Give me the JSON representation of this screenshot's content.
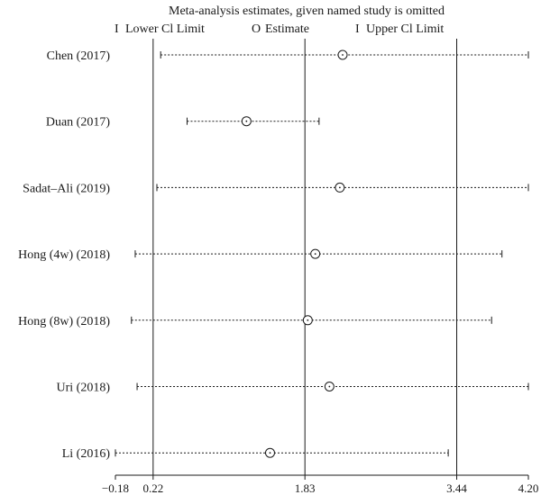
{
  "chart_data": {
    "type": "scatter",
    "title": "Meta-analysis estimates, given named study is omitted",
    "legend": {
      "placement": "top",
      "items": [
        {
          "symbol": "I",
          "label": "Lower Cl Limit"
        },
        {
          "symbol": "O",
          "label": "Estimate"
        },
        {
          "symbol": "I",
          "label": "Upper Cl Limit"
        }
      ]
    },
    "xlim": [
      -0.18,
      4.2
    ],
    "ticks": [
      {
        "value": -0.18,
        "label": "−0.18"
      },
      {
        "value": 0.22,
        "label": "0.22"
      },
      {
        "value": 1.83,
        "label": "1.83"
      },
      {
        "value": 3.44,
        "label": "3.44"
      },
      {
        "value": 4.2,
        "label": "4.20"
      }
    ],
    "reference_lines": [
      0.22,
      1.83,
      3.44
    ],
    "studies": [
      {
        "name": "Chen (2017)",
        "lower": 0.3,
        "estimate": 2.23,
        "upper": 4.2
      },
      {
        "name": "Duan (2017)",
        "lower": 0.58,
        "estimate": 1.21,
        "upper": 1.98
      },
      {
        "name": "Sadat–Ali (2019)",
        "lower": 0.26,
        "estimate": 2.2,
        "upper": 4.2
      },
      {
        "name": "Hong (4w) (2018)",
        "lower": 0.03,
        "estimate": 1.94,
        "upper": 3.92
      },
      {
        "name": "Hong (8w) (2018)",
        "lower": -0.01,
        "estimate": 1.86,
        "upper": 3.81
      },
      {
        "name": "Uri (2018)",
        "lower": 0.05,
        "estimate": 2.09,
        "upper": 4.2
      },
      {
        "name": "Li (2016)",
        "lower": -0.18,
        "estimate": 1.46,
        "upper": 3.35
      }
    ]
  }
}
